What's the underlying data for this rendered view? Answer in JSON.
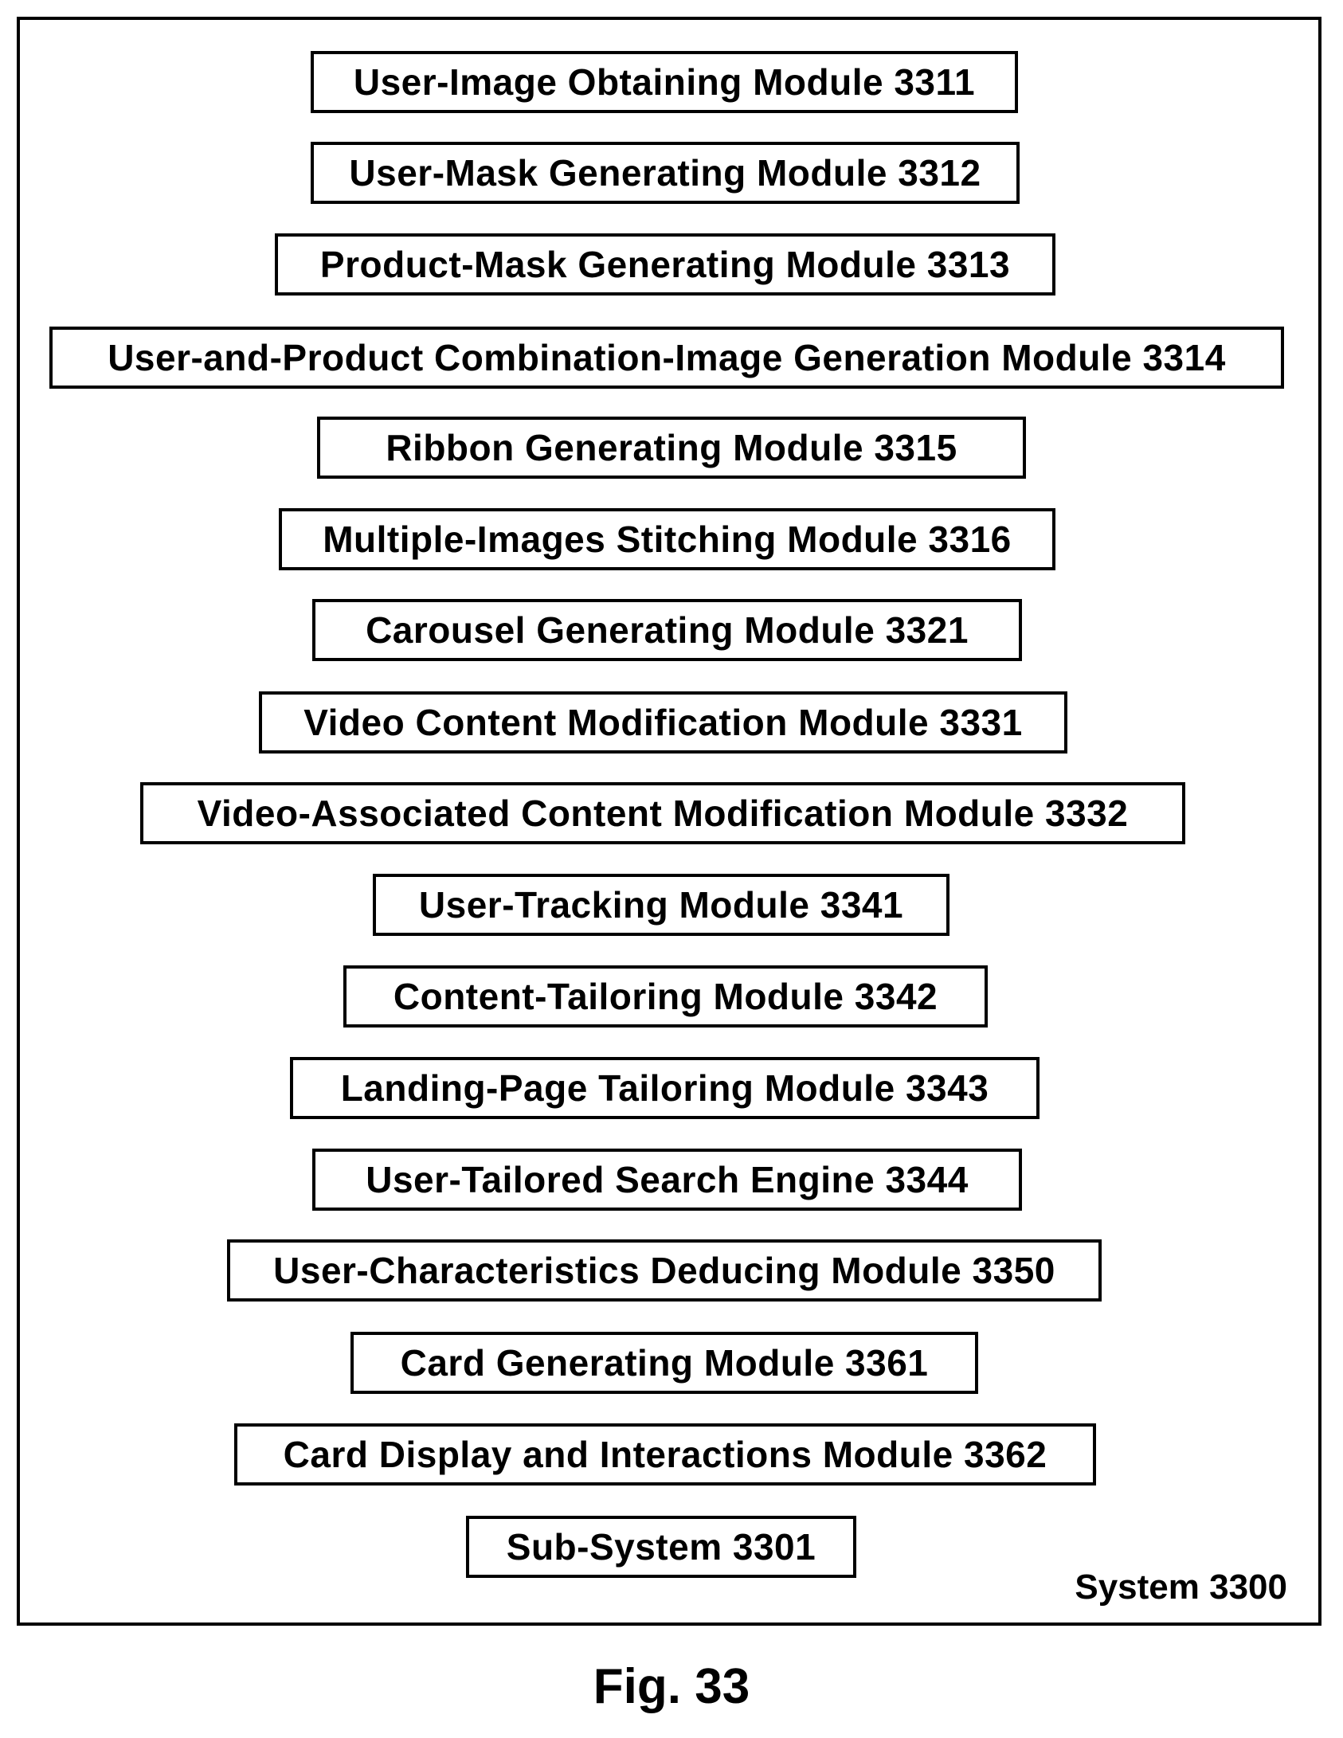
{
  "modules": [
    {
      "label": "User-Image Obtaining Module 3311"
    },
    {
      "label": "User-Mask Generating Module 3312"
    },
    {
      "label": "Product-Mask Generating Module 3313"
    },
    {
      "label": "User-and-Product Combination-Image Generation Module 3314"
    },
    {
      "label": "Ribbon Generating Module 3315"
    },
    {
      "label": "Multiple-Images Stitching Module 3316"
    },
    {
      "label": "Carousel Generating Module 3321"
    },
    {
      "label": "Video Content Modification Module 3331"
    },
    {
      "label": "Video-Associated Content Modification Module 3332"
    },
    {
      "label": "User-Tracking Module 3341"
    },
    {
      "label": "Content-Tailoring Module 3342"
    },
    {
      "label": "Landing-Page Tailoring Module 3343"
    },
    {
      "label": "User-Tailored Search Engine 3344"
    },
    {
      "label": "User-Characteristics Deducing Module 3350"
    },
    {
      "label": "Card Generating Module 3361"
    },
    {
      "label": "Card Display and Interactions Module 3362"
    },
    {
      "label": "Sub-System 3301"
    }
  ],
  "system_label": "System 3300",
  "figure_caption": "Fig. 33"
}
